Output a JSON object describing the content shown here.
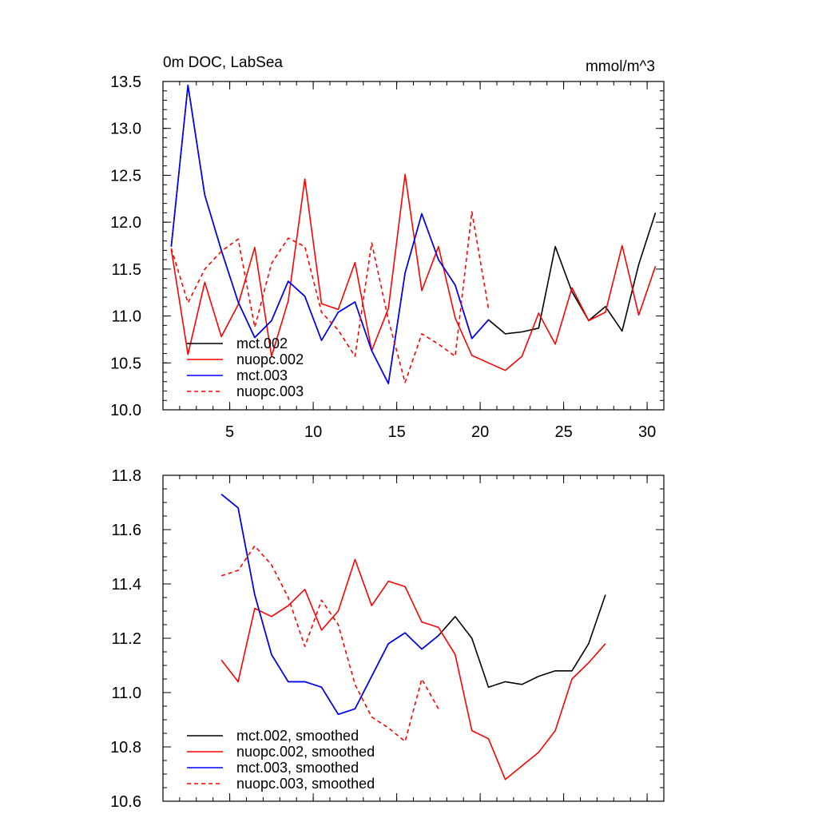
{
  "chart_data": [
    {
      "type": "line",
      "title": "0m DOC, LabSea",
      "units": "mmol/m^3",
      "xlim": [
        1,
        31
      ],
      "ylim": [
        10.0,
        13.5
      ],
      "xticks": [
        5,
        10,
        15,
        20,
        25,
        30
      ],
      "xtick_labels": [
        "5",
        "10",
        "15",
        "20",
        "25",
        "30"
      ],
      "yticks": [
        10.0,
        10.5,
        11.0,
        11.5,
        12.0,
        12.5,
        13.0,
        13.5
      ],
      "ytick_labels": [
        "10.0",
        "10.5",
        "11.0",
        "11.5",
        "12.0",
        "12.5",
        "13.0",
        "13.5"
      ],
      "x_minor_step": 1,
      "y_minor_step": 0.1,
      "legend_location": "lower-left",
      "series": [
        {
          "name": "mct.002",
          "color": "#000000",
          "dash": "solid",
          "x": [
            1.5,
            2.5,
            3.5,
            4.5,
            5.5,
            6.5,
            7.5,
            8.5,
            9.5,
            10.5,
            11.5,
            12.5,
            13.5,
            14.5,
            15.5,
            16.5,
            17.5,
            18.5,
            19.5,
            20.5,
            21.5,
            22.5,
            23.5,
            24.5,
            25.5,
            26.5,
            27.5,
            28.5,
            29.5,
            30.5
          ],
          "y": [
            11.74,
            13.46,
            12.29,
            11.7,
            11.15,
            10.77,
            10.95,
            11.37,
            11.21,
            10.74,
            11.04,
            11.15,
            10.63,
            10.28,
            11.46,
            12.09,
            11.6,
            11.33,
            10.76,
            10.96,
            10.81,
            10.83,
            10.87,
            11.74,
            11.26,
            10.95,
            11.1,
            10.84,
            11.55,
            12.1
          ]
        },
        {
          "name": "nuopc.002",
          "color": "#ff0000",
          "dash": "solid",
          "x": [
            1.5,
            2.5,
            3.5,
            4.5,
            5.5,
            6.5,
            7.5,
            8.5,
            9.5,
            10.5,
            11.5,
            12.5,
            13.5,
            14.5,
            15.5,
            16.5,
            17.5,
            18.5,
            19.5,
            20.5,
            21.5,
            22.5,
            23.5,
            24.5,
            25.5,
            26.5,
            27.5,
            28.5,
            29.5,
            30.5
          ],
          "y": [
            11.71,
            10.59,
            11.36,
            10.78,
            11.12,
            11.73,
            10.57,
            11.16,
            12.46,
            11.13,
            11.07,
            11.57,
            10.63,
            11.08,
            12.51,
            11.27,
            11.74,
            10.98,
            10.58,
            10.5,
            10.42,
            10.57,
            11.03,
            10.7,
            11.3,
            10.95,
            11.04,
            11.75,
            11.01,
            11.53
          ]
        },
        {
          "name": "mct.003",
          "color": "#0000ff",
          "dash": "solid",
          "x": [
            1.5,
            2.5,
            3.5,
            4.5,
            5.5,
            6.5,
            7.5,
            8.5,
            9.5,
            10.5,
            11.5,
            12.5,
            13.5,
            14.5,
            15.5,
            16.5,
            17.5,
            18.5,
            19.5,
            20.5
          ],
          "y": [
            11.74,
            13.46,
            12.29,
            11.7,
            11.15,
            10.77,
            10.95,
            11.37,
            11.21,
            10.74,
            11.04,
            11.15,
            10.63,
            10.28,
            11.46,
            12.09,
            11.6,
            11.33,
            10.76,
            10.96
          ]
        },
        {
          "name": "nuopc.003",
          "color": "#ff0000",
          "dash": "dashed",
          "x": [
            1.5,
            2.5,
            3.5,
            4.5,
            5.5,
            6.5,
            7.5,
            8.5,
            9.5,
            10.5,
            11.5,
            12.5,
            13.5,
            14.5,
            15.5,
            16.5,
            17.5,
            18.5,
            19.5,
            20.5
          ],
          "y": [
            11.72,
            11.14,
            11.5,
            11.69,
            11.82,
            10.88,
            11.56,
            11.83,
            11.74,
            11.04,
            10.85,
            10.57,
            11.78,
            10.96,
            10.29,
            10.81,
            10.7,
            10.57,
            12.11,
            11.08
          ]
        }
      ]
    },
    {
      "type": "line",
      "title": "",
      "xlim": [
        1,
        31
      ],
      "ylim": [
        10.6,
        11.8
      ],
      "xticks": [
        5,
        10,
        15,
        20,
        25,
        30
      ],
      "xtick_labels": [],
      "yticks": [
        10.6,
        10.8,
        11.0,
        11.2,
        11.4,
        11.6,
        11.8
      ],
      "ytick_labels": [
        "10.6",
        "10.8",
        "11.0",
        "11.2",
        "11.4",
        "11.6",
        "11.8"
      ],
      "x_minor_step": 1,
      "y_minor_step": 0.05,
      "legend_location": "lower-left",
      "series": [
        {
          "name": "mct.002, smoothed",
          "color": "#000000",
          "dash": "solid",
          "x": [
            4.5,
            5.5,
            6.5,
            7.5,
            8.5,
            9.5,
            10.5,
            11.5,
            12.5,
            13.5,
            14.5,
            15.5,
            16.5,
            17.5,
            18.5,
            19.5,
            20.5,
            21.5,
            22.5,
            23.5,
            24.5,
            25.5,
            26.5,
            27.5
          ],
          "y": [
            11.73,
            11.68,
            11.36,
            11.14,
            11.04,
            11.04,
            11.02,
            10.92,
            10.94,
            11.06,
            11.18,
            11.22,
            11.16,
            11.21,
            11.28,
            11.2,
            11.02,
            11.04,
            11.03,
            11.06,
            11.08,
            11.08,
            11.18,
            11.36
          ]
        },
        {
          "name": "nuopc.002, smoothed",
          "color": "#ff0000",
          "dash": "solid",
          "x": [
            4.5,
            5.5,
            6.5,
            7.5,
            8.5,
            9.5,
            10.5,
            11.5,
            12.5,
            13.5,
            14.5,
            15.5,
            16.5,
            17.5,
            18.5,
            19.5,
            20.5,
            21.5,
            22.5,
            23.5,
            24.5,
            25.5,
            26.5,
            27.5
          ],
          "y": [
            11.12,
            11.04,
            11.31,
            11.28,
            11.32,
            11.38,
            11.23,
            11.3,
            11.49,
            11.32,
            11.41,
            11.39,
            11.26,
            11.24,
            11.14,
            10.86,
            10.83,
            10.68,
            10.73,
            10.78,
            10.86,
            11.05,
            11.11,
            11.18
          ]
        },
        {
          "name": "mct.003, smoothed",
          "color": "#0000ff",
          "dash": "solid",
          "x": [
            4.5,
            5.5,
            6.5,
            7.5,
            8.5,
            9.5,
            10.5,
            11.5,
            12.5,
            13.5,
            14.5,
            15.5,
            16.5,
            17.5
          ],
          "y": [
            11.73,
            11.68,
            11.36,
            11.14,
            11.04,
            11.04,
            11.02,
            10.92,
            10.94,
            11.06,
            11.18,
            11.22,
            11.16,
            11.21
          ]
        },
        {
          "name": "nuopc.003, smoothed",
          "color": "#ff0000",
          "dash": "dashed",
          "x": [
            4.5,
            5.5,
            6.5,
            7.5,
            8.5,
            9.5,
            10.5,
            11.5,
            12.5,
            13.5,
            14.5,
            15.5,
            16.5,
            17.5
          ],
          "y": [
            11.43,
            11.45,
            11.54,
            11.47,
            11.35,
            11.17,
            11.34,
            11.25,
            11.03,
            10.91,
            10.87,
            10.82,
            11.05,
            10.94
          ]
        }
      ]
    }
  ]
}
